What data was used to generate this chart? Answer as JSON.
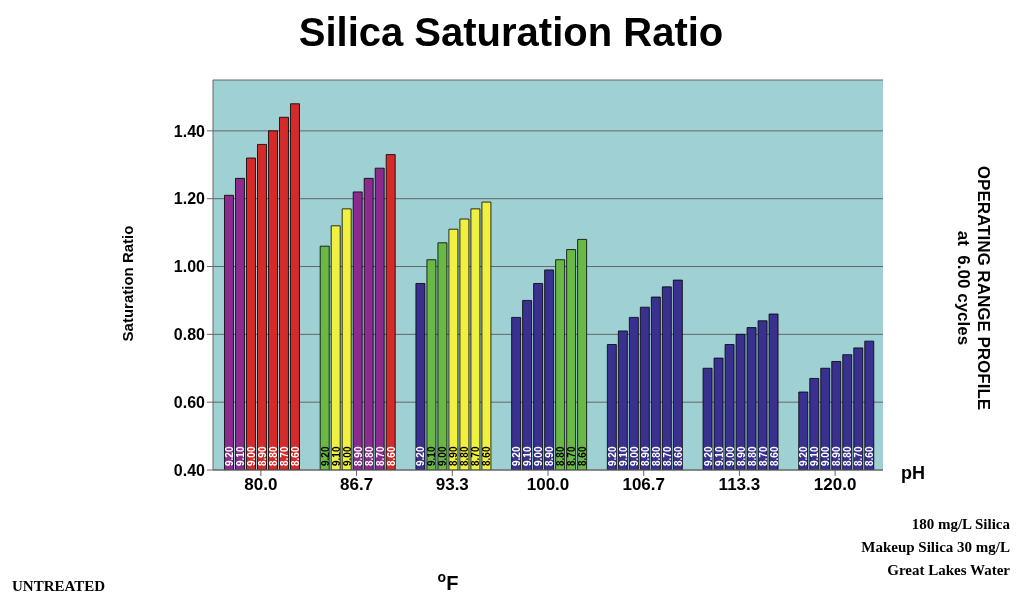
{
  "chart_data": {
    "type": "bar",
    "title": "Silica Saturation Ratio",
    "ylabel": "Saturation Ratio",
    "xlabel": "$^{o}$F",
    "legend_title": "pH",
    "categories": [
      "80.0",
      "86.7",
      "93.3",
      "100.0",
      "106.7",
      "113.3",
      "120.0"
    ],
    "series": [
      {
        "name": "9.20",
        "values": [
          1.21,
          1.06,
          0.95,
          0.85,
          0.77,
          0.7,
          0.63
        ],
        "colors": [
          "#8b2a8f",
          "#6ab845",
          "#3a3090",
          "#3a3090",
          "#3a3090",
          "#3a3090",
          "#3a3090"
        ]
      },
      {
        "name": "9.10",
        "values": [
          1.26,
          1.12,
          1.02,
          0.9,
          0.81,
          0.73,
          0.67
        ],
        "colors": [
          "#8b2a8f",
          "#f0f040",
          "#6ab845",
          "#3a3090",
          "#3a3090",
          "#3a3090",
          "#3a3090"
        ]
      },
      {
        "name": "9.00",
        "values": [
          1.32,
          1.17,
          1.07,
          0.95,
          0.85,
          0.77,
          0.7
        ],
        "colors": [
          "#d42a2a",
          "#f0f040",
          "#6ab845",
          "#3a3090",
          "#3a3090",
          "#3a3090",
          "#3a3090"
        ]
      },
      {
        "name": "8.90",
        "values": [
          1.36,
          1.22,
          1.11,
          0.99,
          0.88,
          0.8,
          0.72
        ],
        "colors": [
          "#d42a2a",
          "#8b2a8f",
          "#f0f040",
          "#3a3090",
          "#3a3090",
          "#3a3090",
          "#3a3090"
        ]
      },
      {
        "name": "8.80",
        "values": [
          1.4,
          1.26,
          1.14,
          1.02,
          0.91,
          0.82,
          0.74
        ],
        "colors": [
          "#d42a2a",
          "#8b2a8f",
          "#f0f040",
          "#6ab845",
          "#3a3090",
          "#3a3090",
          "#3a3090"
        ]
      },
      {
        "name": "8.70",
        "values": [
          1.44,
          1.29,
          1.17,
          1.05,
          0.94,
          0.84,
          0.76
        ],
        "colors": [
          "#d42a2a",
          "#8b2a8f",
          "#f0f040",
          "#6ab845",
          "#3a3090",
          "#3a3090",
          "#3a3090"
        ]
      },
      {
        "name": "8.60",
        "values": [
          1.48,
          1.33,
          1.19,
          1.08,
          0.96,
          0.86,
          0.78
        ],
        "colors": [
          "#d42a2a",
          "#d42a2a",
          "#f0f040",
          "#6ab845",
          "#3a3090",
          "#3a3090",
          "#3a3090"
        ]
      }
    ],
    "ylim": [
      0.4,
      1.55
    ],
    "yticks": [
      {
        "value": 0.4,
        "label": "0.40"
      },
      {
        "value": 0.6,
        "label": "0.60"
      },
      {
        "value": 0.8,
        "label": "0.80"
      },
      {
        "value": 1.0,
        "label": "1.00"
      },
      {
        "value": 1.2,
        "label": "1.20"
      },
      {
        "value": 1.4,
        "label": "1.40"
      }
    ],
    "grid": "y",
    "legend": false,
    "annotations": [
      "OPERATING RANGE PROFILE",
      "at  6.00 cycles",
      "180 mg/L Silica",
      "Makeup Silica 30 mg/L",
      "Great Lakes Water",
      "UNTREATED"
    ]
  }
}
